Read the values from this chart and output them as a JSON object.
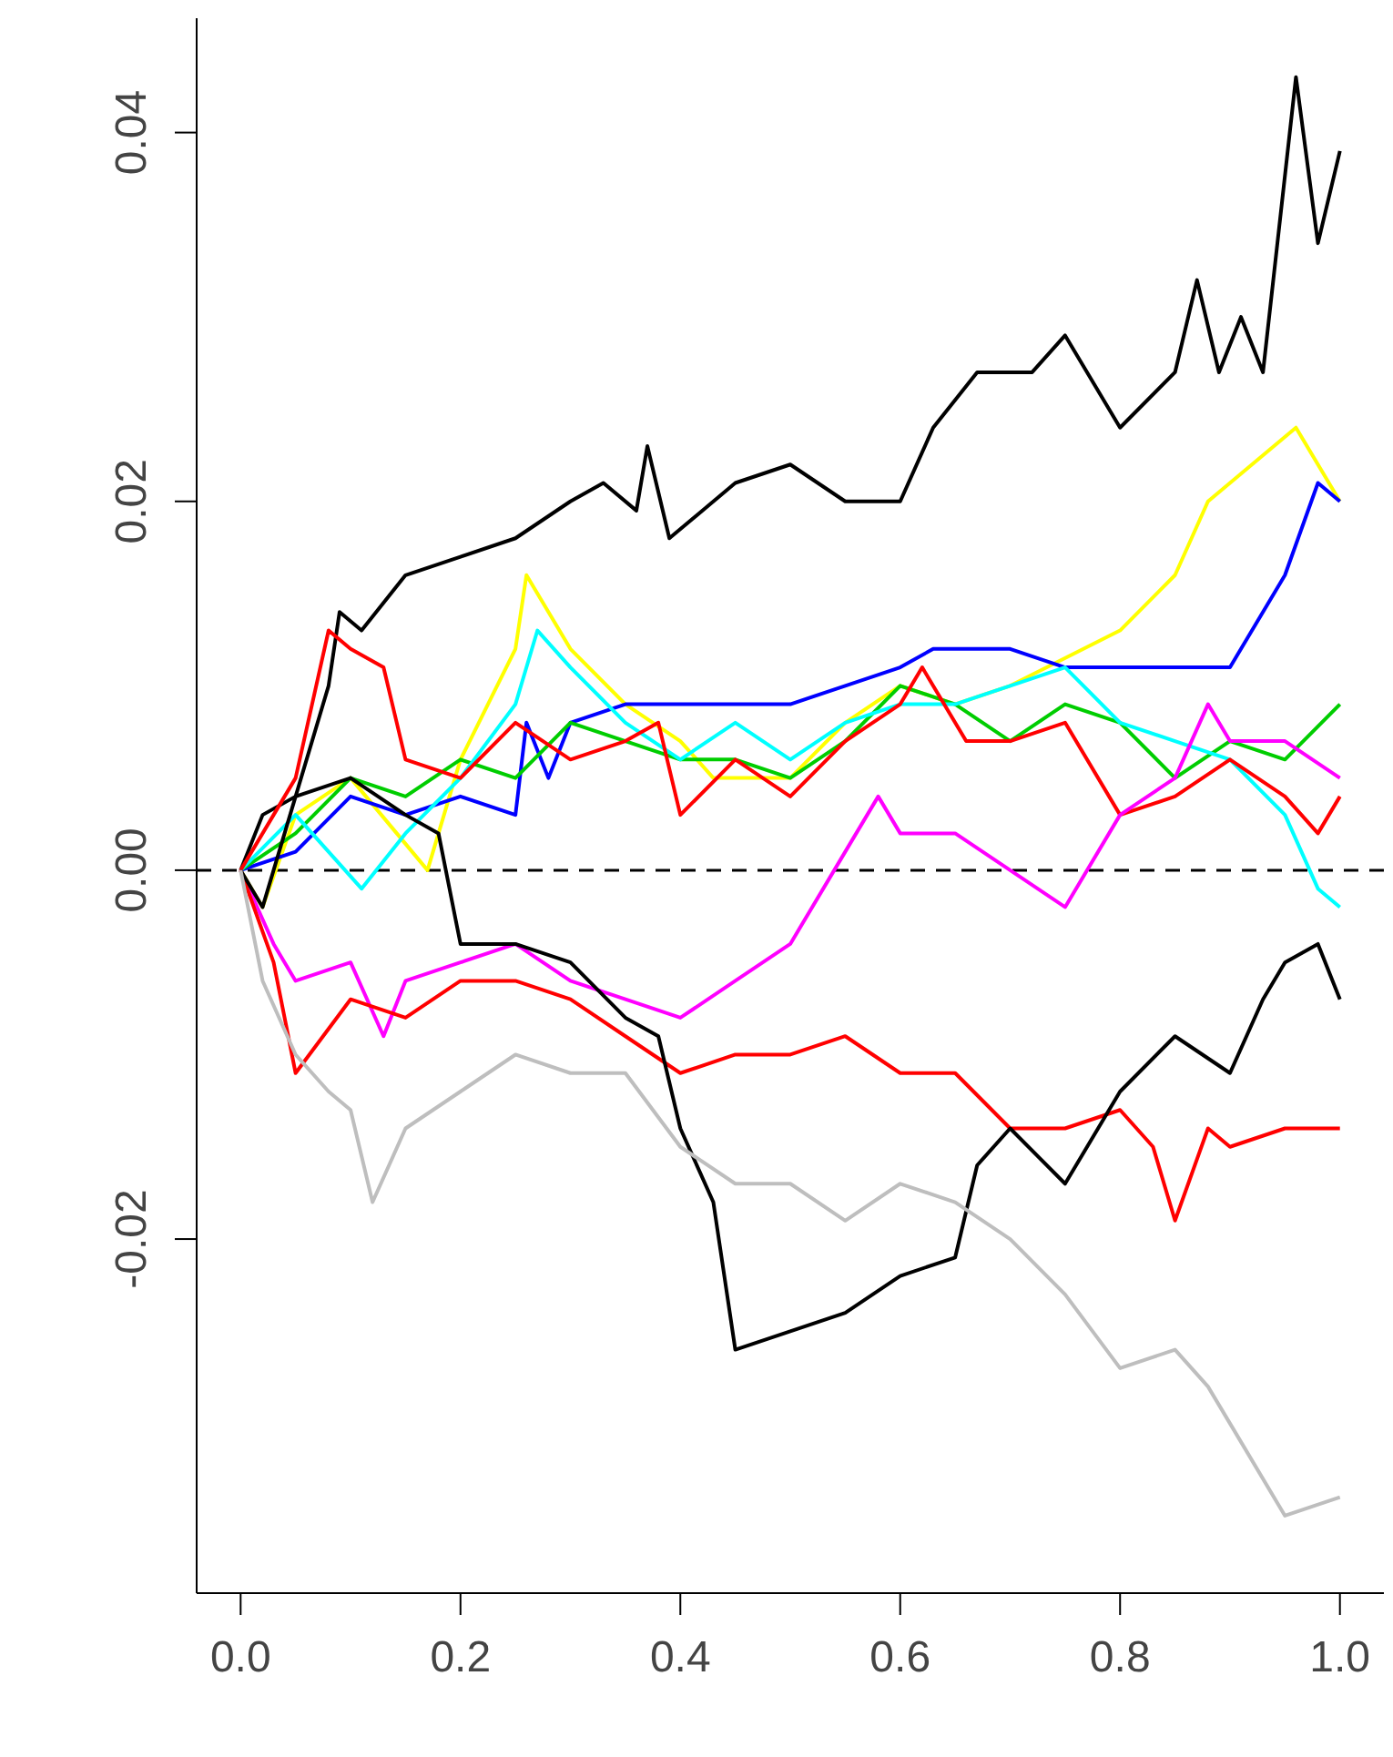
{
  "chart_data": {
    "type": "line",
    "xlim": [
      -0.04,
      1.04
    ],
    "ylim": [
      -0.0392,
      0.0462
    ],
    "xticks": [
      {
        "value": 0,
        "label": "0.0"
      },
      {
        "value": 0.2,
        "label": "0.2"
      },
      {
        "value": 0.4,
        "label": "0.4"
      },
      {
        "value": 0.6,
        "label": "0.6"
      },
      {
        "value": 0.8,
        "label": "0.8"
      },
      {
        "value": 1,
        "label": "1.0"
      }
    ],
    "yticks": [
      {
        "value": -0.02,
        "label": "-0.02"
      },
      {
        "value": 0,
        "label": "0.00"
      },
      {
        "value": 0.02,
        "label": "0.02"
      },
      {
        "value": 0.04,
        "label": "0.04"
      }
    ],
    "grid": false,
    "legend": false,
    "marker": "none",
    "line_style": "solid",
    "ref_lines": [
      {
        "axis": "y",
        "value": 0,
        "color": "#000000",
        "line_style": "dashed"
      }
    ],
    "series": [
      {
        "color": "#000000",
        "x": [
          0,
          0.02,
          0.05,
          0.08,
          0.09,
          0.11,
          0.15,
          0.2,
          0.25,
          0.3,
          0.33,
          0.36,
          0.37,
          0.39,
          0.45,
          0.5,
          0.55,
          0.6,
          0.63,
          0.67,
          0.72,
          0.75,
          0.8,
          0.85,
          0.87,
          0.89,
          0.91,
          0.93,
          0.96,
          0.98,
          1.0
        ],
        "values": [
          0,
          0.003,
          0.004,
          0.01,
          0.014,
          0.013,
          0.016,
          0.017,
          0.018,
          0.02,
          0.021,
          0.0195,
          0.023,
          0.018,
          0.021,
          0.022,
          0.02,
          0.02,
          0.024,
          0.027,
          0.027,
          0.029,
          0.024,
          0.027,
          0.032,
          0.027,
          0.03,
          0.027,
          0.043,
          0.034,
          0.039
        ]
      },
      {
        "color": "#ffff00",
        "x": [
          0,
          0.02,
          0.05,
          0.1,
          0.17,
          0.2,
          0.25,
          0.26,
          0.3,
          0.35,
          0.4,
          0.43,
          0.5,
          0.55,
          0.6,
          0.65,
          0.7,
          0.8,
          0.85,
          0.88,
          0.92,
          0.96,
          1.0
        ],
        "values": [
          0,
          -0.002,
          0.003,
          0.005,
          0.0,
          0.006,
          0.012,
          0.016,
          0.012,
          0.009,
          0.007,
          0.005,
          0.005,
          0.008,
          0.01,
          0.009,
          0.01,
          0.013,
          0.016,
          0.02,
          0.022,
          0.024,
          0.02
        ]
      },
      {
        "color": "#0000ff",
        "x": [
          0,
          0.05,
          0.1,
          0.15,
          0.2,
          0.25,
          0.26,
          0.28,
          0.3,
          0.35,
          0.4,
          0.5,
          0.55,
          0.6,
          0.63,
          0.7,
          0.75,
          0.8,
          0.9,
          0.95,
          0.98,
          1.0
        ],
        "values": [
          0,
          0.001,
          0.004,
          0.003,
          0.004,
          0.003,
          0.008,
          0.005,
          0.008,
          0.009,
          0.009,
          0.009,
          0.01,
          0.011,
          0.012,
          0.012,
          0.011,
          0.011,
          0.011,
          0.016,
          0.021,
          0.02
        ]
      },
      {
        "color": "#00cd00",
        "x": [
          0,
          0.05,
          0.1,
          0.15,
          0.2,
          0.25,
          0.3,
          0.35,
          0.4,
          0.45,
          0.5,
          0.55,
          0.6,
          0.65,
          0.7,
          0.75,
          0.8,
          0.85,
          0.9,
          0.95,
          1.0
        ],
        "values": [
          0,
          0.002,
          0.005,
          0.004,
          0.006,
          0.005,
          0.008,
          0.007,
          0.006,
          0.006,
          0.005,
          0.007,
          0.01,
          0.009,
          0.007,
          0.009,
          0.008,
          0.005,
          0.007,
          0.006,
          0.009
        ]
      },
      {
        "color": "#00ffff",
        "x": [
          0,
          0.05,
          0.11,
          0.15,
          0.2,
          0.25,
          0.27,
          0.3,
          0.35,
          0.4,
          0.45,
          0.5,
          0.55,
          0.6,
          0.65,
          0.7,
          0.75,
          0.8,
          0.85,
          0.9,
          0.95,
          0.98,
          1.0
        ],
        "values": [
          0,
          0.003,
          -0.001,
          0.002,
          0.005,
          0.009,
          0.013,
          0.011,
          0.008,
          0.006,
          0.008,
          0.006,
          0.008,
          0.009,
          0.009,
          0.01,
          0.011,
          0.008,
          0.007,
          0.006,
          0.003,
          -0.001,
          -0.002
        ]
      },
      {
        "color": "#ff0000",
        "x": [
          0,
          0.03,
          0.05,
          0.08,
          0.1,
          0.13,
          0.15,
          0.2,
          0.25,
          0.3,
          0.35,
          0.38,
          0.4,
          0.45,
          0.5,
          0.55,
          0.6,
          0.62,
          0.66,
          0.7,
          0.75,
          0.8,
          0.85,
          0.9,
          0.95,
          0.98,
          1.0
        ],
        "values": [
          0,
          0.003,
          0.005,
          0.013,
          0.012,
          0.011,
          0.006,
          0.005,
          0.008,
          0.006,
          0.007,
          0.008,
          0.003,
          0.006,
          0.004,
          0.007,
          0.009,
          0.011,
          0.007,
          0.007,
          0.008,
          0.003,
          0.004,
          0.006,
          0.004,
          0.002,
          0.004
        ]
      },
      {
        "color": "#ff00ff",
        "x": [
          0,
          0.03,
          0.05,
          0.1,
          0.13,
          0.15,
          0.2,
          0.25,
          0.3,
          0.35,
          0.4,
          0.45,
          0.5,
          0.55,
          0.58,
          0.6,
          0.65,
          0.7,
          0.75,
          0.8,
          0.85,
          0.88,
          0.9,
          0.95,
          1.0
        ],
        "values": [
          0,
          -0.004,
          -0.006,
          -0.005,
          -0.009,
          -0.006,
          -0.005,
          -0.004,
          -0.006,
          -0.007,
          -0.008,
          -0.006,
          -0.004,
          0.001,
          0.004,
          0.002,
          0.002,
          0.0,
          -0.002,
          0.003,
          0.005,
          0.009,
          0.007,
          0.007,
          0.005
        ]
      },
      {
        "color": "#ff0000",
        "x": [
          0,
          0.03,
          0.05,
          0.1,
          0.15,
          0.2,
          0.25,
          0.3,
          0.35,
          0.4,
          0.45,
          0.5,
          0.55,
          0.6,
          0.65,
          0.7,
          0.75,
          0.8,
          0.83,
          0.85,
          0.88,
          0.9,
          0.95,
          1.0
        ],
        "values": [
          0,
          -0.005,
          -0.011,
          -0.007,
          -0.008,
          -0.006,
          -0.006,
          -0.007,
          -0.009,
          -0.011,
          -0.01,
          -0.01,
          -0.009,
          -0.011,
          -0.011,
          -0.014,
          -0.014,
          -0.013,
          -0.015,
          -0.019,
          -0.014,
          -0.015,
          -0.014,
          -0.014
        ]
      },
      {
        "color": "#000000",
        "x": [
          0,
          0.02,
          0.05,
          0.1,
          0.15,
          0.18,
          0.2,
          0.25,
          0.3,
          0.35,
          0.38,
          0.4,
          0.43,
          0.45,
          0.5,
          0.55,
          0.6,
          0.65,
          0.67,
          0.7,
          0.75,
          0.8,
          0.85,
          0.9,
          0.93,
          0.95,
          0.98,
          1.0
        ],
        "values": [
          0,
          -0.002,
          0.004,
          0.005,
          0.003,
          0.002,
          -0.004,
          -0.004,
          -0.005,
          -0.008,
          -0.009,
          -0.014,
          -0.018,
          -0.026,
          -0.025,
          -0.024,
          -0.022,
          -0.021,
          -0.016,
          -0.014,
          -0.017,
          -0.012,
          -0.009,
          -0.011,
          -0.007,
          -0.005,
          -0.004,
          -0.007
        ]
      },
      {
        "color": "#bebebe",
        "x": [
          0,
          0.02,
          0.05,
          0.08,
          0.1,
          0.12,
          0.15,
          0.2,
          0.25,
          0.3,
          0.35,
          0.4,
          0.45,
          0.5,
          0.55,
          0.6,
          0.65,
          0.7,
          0.75,
          0.8,
          0.85,
          0.88,
          0.9,
          0.95,
          1.0
        ],
        "values": [
          0,
          -0.006,
          -0.01,
          -0.012,
          -0.013,
          -0.018,
          -0.014,
          -0.012,
          -0.01,
          -0.011,
          -0.011,
          -0.015,
          -0.017,
          -0.017,
          -0.019,
          -0.017,
          -0.018,
          -0.02,
          -0.023,
          -0.027,
          -0.026,
          -0.028,
          -0.03,
          -0.035,
          -0.034
        ]
      }
    ]
  }
}
